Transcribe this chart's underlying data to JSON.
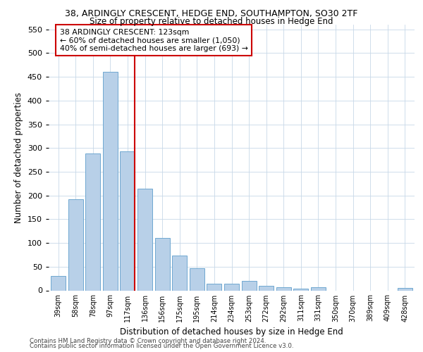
{
  "title1": "38, ARDINGLY CRESCENT, HEDGE END, SOUTHAMPTON, SO30 2TF",
  "title2": "Size of property relative to detached houses in Hedge End",
  "xlabel": "Distribution of detached houses by size in Hedge End",
  "ylabel": "Number of detached properties",
  "categories": [
    "39sqm",
    "58sqm",
    "78sqm",
    "97sqm",
    "117sqm",
    "136sqm",
    "156sqm",
    "175sqm",
    "195sqm",
    "214sqm",
    "234sqm",
    "253sqm",
    "272sqm",
    "292sqm",
    "311sqm",
    "331sqm",
    "350sqm",
    "370sqm",
    "389sqm",
    "409sqm",
    "428sqm"
  ],
  "values": [
    30,
    192,
    288,
    460,
    293,
    214,
    111,
    74,
    46,
    14,
    14,
    20,
    10,
    6,
    3,
    6,
    0,
    0,
    0,
    0,
    5
  ],
  "bar_color": "#b8d0e8",
  "bar_edge_color": "#6fa8d0",
  "vline_index": 4,
  "vline_color": "#cc0000",
  "annotation_text": "38 ARDINGLY CRESCENT: 123sqm\n← 60% of detached houses are smaller (1,050)\n40% of semi-detached houses are larger (693) →",
  "annotation_box_color": "#ffffff",
  "annotation_box_edge_color": "#cc0000",
  "ylim": [
    0,
    560
  ],
  "yticks": [
    0,
    50,
    100,
    150,
    200,
    250,
    300,
    350,
    400,
    450,
    500,
    550
  ],
  "footnote1": "Contains HM Land Registry data © Crown copyright and database right 2024.",
  "footnote2": "Contains public sector information licensed under the Open Government Licence v3.0.",
  "background_color": "#ffffff",
  "grid_color": "#c8d8e8"
}
